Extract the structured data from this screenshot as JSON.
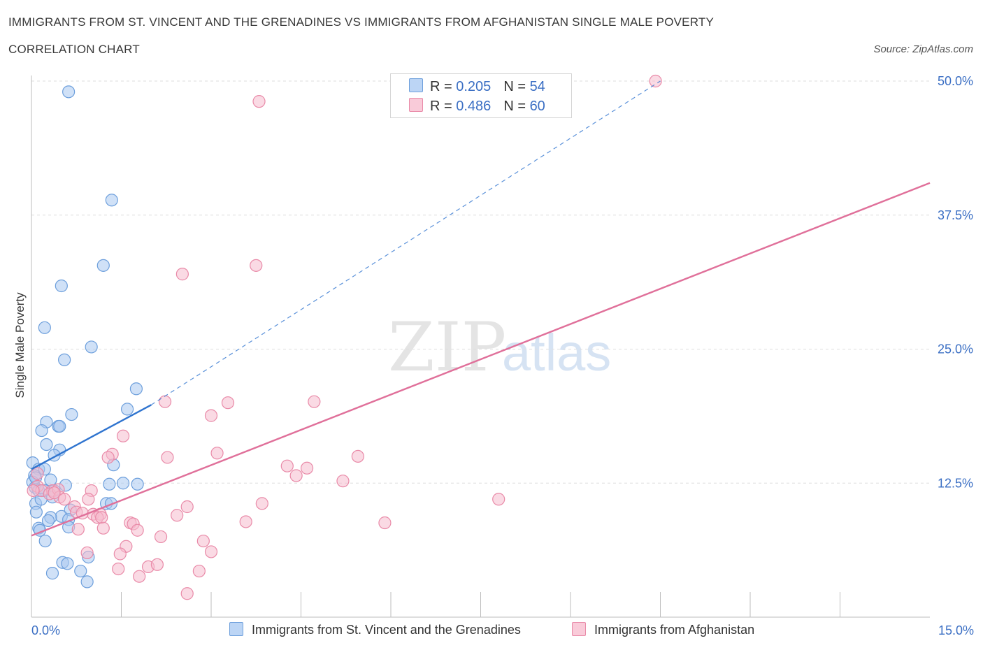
{
  "title_line1": "IMMIGRANTS FROM ST. VINCENT AND THE GRENADINES VS IMMIGRANTS FROM AFGHANISTAN SINGLE MALE POVERTY",
  "title_line2": "CORRELATION CHART",
  "source": "Source: ZipAtlas.com",
  "watermark": {
    "zip": "ZIP",
    "atlas": "atlas"
  },
  "colors": {
    "blue_fill": "#a9c8f0",
    "blue_stroke": "#6d9fdc",
    "blue_line": "#2f74cf",
    "pink_fill": "#f6bccd",
    "pink_stroke": "#e98aa8",
    "pink_line": "#e0709a",
    "axis_label": "#3b6fc4",
    "grid": "#dedede"
  },
  "legend_top": [
    {
      "r_label": "R = ",
      "r_value": "0.205",
      "n_label": "N = ",
      "n_value": "54"
    },
    {
      "r_label": "R = ",
      "r_value": "0.486",
      "n_label": "N = ",
      "n_value": "60"
    }
  ],
  "chart_data": {
    "type": "scatter",
    "xlabel": "",
    "ylabel": "Single Male Poverty",
    "xlim": [
      0,
      15
    ],
    "ylim": [
      0,
      50
    ],
    "x_tick_labels": [
      {
        "value": 0,
        "label": "0.0%"
      },
      {
        "value": 15,
        "label": "15.0%"
      }
    ],
    "y_ticks": [
      {
        "value": 12.5,
        "label": "12.5%"
      },
      {
        "value": 25,
        "label": "25.0%"
      },
      {
        "value": 37.5,
        "label": "37.5%"
      },
      {
        "value": 50,
        "label": "50.0%"
      }
    ],
    "x_minor_ticks": [
      1.5,
      3.0,
      4.5,
      6.0,
      7.5,
      9.0,
      10.5,
      12.0,
      13.5
    ],
    "grid": true,
    "legend_position": "bottom",
    "series": [
      {
        "name": "Immigrants from St. Vincent and the Grenadines",
        "color": "blue",
        "trend": {
          "x": [
            0.0,
            2.0
          ],
          "y": [
            13.8,
            19.8
          ],
          "dashed_to": {
            "x": 10.5,
            "y": 50.0
          }
        },
        "points": [
          [
            0.62,
            49.0
          ],
          [
            1.34,
            38.9
          ],
          [
            1.2,
            32.8
          ],
          [
            0.5,
            30.9
          ],
          [
            0.22,
            27.0
          ],
          [
            1.0,
            25.2
          ],
          [
            0.55,
            24.0
          ],
          [
            1.75,
            21.3
          ],
          [
            1.6,
            19.4
          ],
          [
            0.67,
            18.9
          ],
          [
            0.25,
            18.2
          ],
          [
            0.45,
            17.8
          ],
          [
            0.17,
            17.4
          ],
          [
            0.47,
            17.8
          ],
          [
            0.25,
            16.1
          ],
          [
            0.47,
            15.6
          ],
          [
            0.38,
            15.1
          ],
          [
            1.37,
            14.2
          ],
          [
            0.02,
            14.4
          ],
          [
            0.12,
            13.8
          ],
          [
            0.22,
            13.8
          ],
          [
            0.05,
            13.2
          ],
          [
            0.32,
            12.8
          ],
          [
            0.57,
            12.3
          ],
          [
            1.3,
            12.4
          ],
          [
            1.53,
            12.5
          ],
          [
            1.77,
            12.4
          ],
          [
            0.02,
            12.6
          ],
          [
            0.06,
            12.1
          ],
          [
            0.12,
            11.8
          ],
          [
            0.22,
            11.8
          ],
          [
            0.38,
            11.8
          ],
          [
            0.35,
            11.2
          ],
          [
            0.07,
            10.6
          ],
          [
            1.25,
            10.6
          ],
          [
            1.33,
            10.6
          ],
          [
            0.65,
            10.0
          ],
          [
            0.08,
            9.8
          ],
          [
            0.5,
            9.4
          ],
          [
            0.32,
            9.3
          ],
          [
            0.62,
            9.1
          ],
          [
            0.28,
            9.0
          ],
          [
            0.12,
            8.3
          ],
          [
            0.62,
            8.4
          ],
          [
            0.14,
            8.1
          ],
          [
            0.23,
            7.1
          ],
          [
            0.95,
            5.6
          ],
          [
            0.52,
            5.1
          ],
          [
            0.6,
            5.0
          ],
          [
            0.35,
            4.1
          ],
          [
            0.82,
            4.3
          ],
          [
            0.93,
            3.3
          ],
          [
            0.07,
            13.0
          ],
          [
            0.16,
            11.0
          ]
        ]
      },
      {
        "name": "Immigrants from Afghanistan",
        "color": "pink",
        "trend": {
          "x": [
            0.0,
            15.0
          ],
          "y": [
            7.6,
            40.5
          ]
        },
        "points": [
          [
            10.42,
            50.0
          ],
          [
            3.8,
            48.1
          ],
          [
            3.75,
            32.8
          ],
          [
            2.52,
            32.0
          ],
          [
            2.23,
            20.1
          ],
          [
            3.28,
            20.0
          ],
          [
            4.72,
            20.1
          ],
          [
            3.0,
            18.8
          ],
          [
            1.53,
            16.9
          ],
          [
            3.1,
            15.3
          ],
          [
            1.35,
            15.2
          ],
          [
            1.28,
            14.9
          ],
          [
            2.27,
            14.9
          ],
          [
            5.45,
            15.0
          ],
          [
            4.27,
            14.1
          ],
          [
            4.6,
            13.9
          ],
          [
            4.42,
            13.2
          ],
          [
            5.2,
            12.7
          ],
          [
            0.1,
            12.2
          ],
          [
            0.17,
            11.8
          ],
          [
            0.35,
            11.8
          ],
          [
            0.3,
            11.5
          ],
          [
            0.45,
            11.9
          ],
          [
            1.0,
            11.8
          ],
          [
            0.47,
            11.2
          ],
          [
            0.55,
            11.0
          ],
          [
            0.95,
            11.0
          ],
          [
            7.8,
            11.0
          ],
          [
            3.85,
            10.6
          ],
          [
            2.6,
            10.3
          ],
          [
            0.72,
            10.3
          ],
          [
            0.75,
            9.8
          ],
          [
            0.85,
            9.7
          ],
          [
            1.03,
            9.6
          ],
          [
            1.15,
            9.6
          ],
          [
            2.43,
            9.5
          ],
          [
            1.1,
            9.3
          ],
          [
            1.17,
            9.3
          ],
          [
            3.58,
            8.9
          ],
          [
            5.9,
            8.8
          ],
          [
            1.65,
            8.8
          ],
          [
            1.7,
            8.7
          ],
          [
            1.2,
            8.3
          ],
          [
            1.77,
            8.1
          ],
          [
            0.78,
            8.2
          ],
          [
            2.16,
            7.5
          ],
          [
            2.87,
            7.1
          ],
          [
            1.58,
            6.6
          ],
          [
            0.93,
            6.0
          ],
          [
            1.48,
            5.9
          ],
          [
            3.0,
            6.1
          ],
          [
            1.95,
            4.7
          ],
          [
            2.1,
            4.9
          ],
          [
            1.45,
            4.5
          ],
          [
            2.8,
            4.3
          ],
          [
            1.8,
            3.8
          ],
          [
            2.6,
            2.2
          ],
          [
            0.03,
            11.8
          ],
          [
            0.1,
            13.4
          ],
          [
            0.38,
            11.6
          ]
        ]
      }
    ]
  }
}
